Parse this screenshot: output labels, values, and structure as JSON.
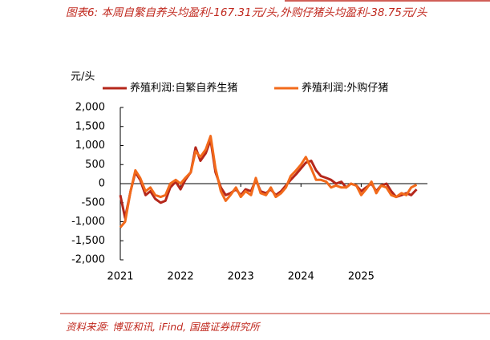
{
  "chart_data": {
    "type": "line",
    "title": "图表6: 本周自繁自养头均盈利-167.31元/头,外购仔猪头均盈利-38.75元/头",
    "y_label": "元/头",
    "source": "资料来源: 博亚和讯, iFind, 国盛证券研究所",
    "x": [
      2021.0,
      2021.08,
      2021.17,
      2021.25,
      2021.33,
      2021.42,
      2021.5,
      2021.58,
      2021.67,
      2021.75,
      2021.83,
      2021.92,
      2022.0,
      2022.08,
      2022.17,
      2022.25,
      2022.33,
      2022.42,
      2022.5,
      2022.58,
      2022.67,
      2022.75,
      2022.83,
      2022.92,
      2023.0,
      2023.08,
      2023.17,
      2023.25,
      2023.33,
      2023.42,
      2023.5,
      2023.58,
      2023.67,
      2023.75,
      2023.83,
      2023.92,
      2024.0,
      2024.08,
      2024.17,
      2024.25,
      2024.33,
      2024.42,
      2024.5,
      2024.58,
      2024.67,
      2024.75,
      2024.83,
      2024.92,
      2025.0,
      2025.08,
      2025.17,
      2025.25,
      2025.33,
      2025.42,
      2025.5,
      2025.58,
      2025.67,
      2025.75,
      2025.83,
      2025.92
    ],
    "series": [
      {
        "name": "养殖利润:自繁自养生猪",
        "color": "#b5271b",
        "values": [
          -300,
          -900,
          -200,
          300,
          100,
          -300,
          -200,
          -400,
          -500,
          -450,
          -100,
          50,
          -150,
          100,
          300,
          950,
          600,
          800,
          1150,
          300,
          -100,
          -300,
          -250,
          -150,
          -300,
          -150,
          -200,
          100,
          -200,
          -250,
          -150,
          -300,
          -200,
          -50,
          100,
          250,
          400,
          550,
          600,
          350,
          200,
          150,
          100,
          0,
          50,
          -100,
          0,
          -50,
          -200,
          -100,
          0,
          -200,
          -50,
          0,
          -200,
          -350,
          -300,
          -250,
          -300,
          -150
        ]
      },
      {
        "name": "养殖利润:外购仔猪",
        "color": "#f26a1b",
        "values": [
          -1150,
          -1000,
          -200,
          350,
          150,
          -200,
          -100,
          -300,
          -350,
          -300,
          0,
          100,
          0,
          150,
          300,
          850,
          700,
          900,
          1250,
          400,
          -200,
          -450,
          -300,
          -100,
          -350,
          -200,
          -300,
          150,
          -250,
          -300,
          -100,
          -350,
          -250,
          -100,
          200,
          350,
          500,
          700,
          400,
          100,
          100,
          50,
          -100,
          -50,
          -100,
          -100,
          0,
          -50,
          -300,
          -150,
          50,
          -250,
          -50,
          -100,
          -300,
          -350,
          -250,
          -300,
          -100,
          -30
        ]
      }
    ],
    "xlim": [
      2021,
      2026.1
    ],
    "xticks": [
      2021,
      2022,
      2023,
      2024,
      2025
    ],
    "ylim": [
      -2000,
      2000
    ],
    "yticks": [
      {
        "value": -2000,
        "label": "-2,000"
      },
      {
        "value": -1500,
        "label": "-1,500"
      },
      {
        "value": -1000,
        "label": "-1,000"
      },
      -500,
      0,
      500,
      {
        "value": 1000,
        "label": "1,000"
      },
      {
        "value": 1500,
        "label": "1,500"
      },
      {
        "value": 2000,
        "label": "2,000"
      }
    ],
    "legend": "top"
  }
}
